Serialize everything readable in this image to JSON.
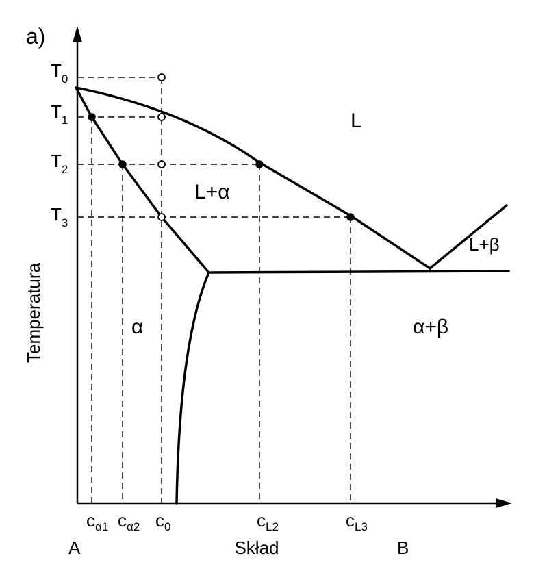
{
  "panel_label": "a)",
  "y_axis_label": "Temperatura",
  "x_axis_label": "Skład",
  "x_ends": {
    "left": "A",
    "right": "B"
  },
  "temperatures": [
    {
      "base": "T",
      "sub": "0"
    },
    {
      "base": "T",
      "sub": "1"
    },
    {
      "base": "T",
      "sub": "2"
    },
    {
      "base": "T",
      "sub": "3"
    }
  ],
  "compositions": [
    {
      "base": "c",
      "sub": "α1"
    },
    {
      "base": "c",
      "sub": "α2"
    },
    {
      "base": "c",
      "sub": "0"
    },
    {
      "base": "c",
      "sub": "L2"
    },
    {
      "base": "c",
      "sub": "L3"
    }
  ],
  "regions": {
    "liquid": "L",
    "liquid_alpha": "L+α",
    "alpha": "α",
    "liquid_beta": "L+β",
    "alpha_beta": "α+β"
  }
}
